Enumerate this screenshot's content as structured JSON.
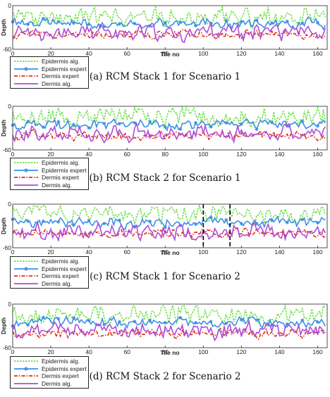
{
  "colors": {
    "epidermis_alg": "#6ee04a",
    "epidermis_expert": "#3b8fe6",
    "dermis_expert": "#e02a18",
    "dermis_alg": "#b04cd8",
    "marker": "#000000"
  },
  "chart_data": [
    {
      "type": "line",
      "caption": "(a) RCM Stack 1 for Scenario 1",
      "xlabel": "Tile no",
      "ylabel": "Depth",
      "xlim": [
        0,
        165
      ],
      "ylim": [
        -60,
        0
      ],
      "xticks": [
        "0",
        "20",
        "40",
        "60",
        "80",
        "100",
        "120",
        "140",
        "160"
      ],
      "yticks": [
        "0",
        "-60"
      ],
      "show_xlabel": true,
      "legend": [
        "Epidermis alg.",
        "Epidermis expert",
        "Dermis expert",
        "Dermis alg."
      ],
      "markers_x": [],
      "seed": 11
    },
    {
      "type": "line",
      "caption": "(b) RCM Stack 2 for Scenario 1",
      "xlabel": "",
      "ylabel": "Depth",
      "xlim": [
        0,
        165
      ],
      "ylim": [
        -60,
        0
      ],
      "xticks": [
        "0",
        "20",
        "40",
        "60",
        "80",
        "100",
        "120",
        "140",
        "160"
      ],
      "yticks": [
        "0",
        "-60"
      ],
      "show_xlabel": false,
      "legend": [
        "Epidermis alg.",
        "Epidermis expert",
        "Dermis expert",
        "Dermis alg."
      ],
      "markers_x": [],
      "seed": 23
    },
    {
      "type": "line",
      "caption": "(c) RCM Stack 1 for Scenario 2",
      "xlabel": "Tile no",
      "ylabel": "Depth",
      "xlim": [
        0,
        165
      ],
      "ylim": [
        -60,
        0
      ],
      "xticks": [
        "0",
        "20",
        "40",
        "60",
        "80",
        "100",
        "120",
        "140",
        "160"
      ],
      "yticks": [
        "0",
        "-60"
      ],
      "show_xlabel": true,
      "legend": [
        "Epidermis alg.",
        "Epidermis expert",
        "Dermis expert",
        "Dermis alg."
      ],
      "markers_x": [
        100,
        114
      ],
      "seed": 37
    },
    {
      "type": "line",
      "caption": "(d) RCM Stack 2 for Scenario 2",
      "xlabel": "Tile no",
      "ylabel": "Depth",
      "xlim": [
        0,
        165
      ],
      "ylim": [
        -60,
        0
      ],
      "xticks": [
        "0",
        "20",
        "40",
        "60",
        "80",
        "100",
        "120",
        "140",
        "160"
      ],
      "yticks": [
        "0",
        "-60"
      ],
      "show_xlabel": true,
      "legend": [
        "Epidermis alg.",
        "Epidermis expert",
        "Dermis expert",
        "Dermis alg."
      ],
      "markers_x": [],
      "seed": 53
    }
  ]
}
